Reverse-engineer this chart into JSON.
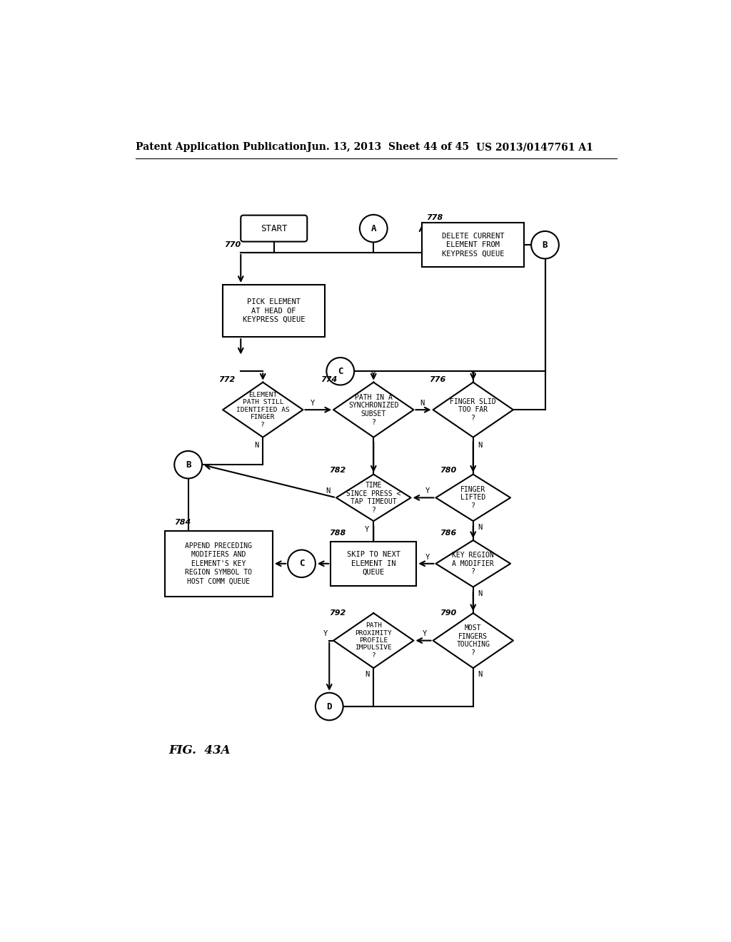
{
  "bg_color": "#ffffff",
  "header_left": "Patent Application Publication",
  "header_mid": "Jun. 13, 2013  Sheet 44 of 45",
  "header_right": "US 2013/0147761 A1",
  "fig_label": "FIG.  43A",
  "line_color": "#000000",
  "font_size": 7.5,
  "header_font_size": 10
}
